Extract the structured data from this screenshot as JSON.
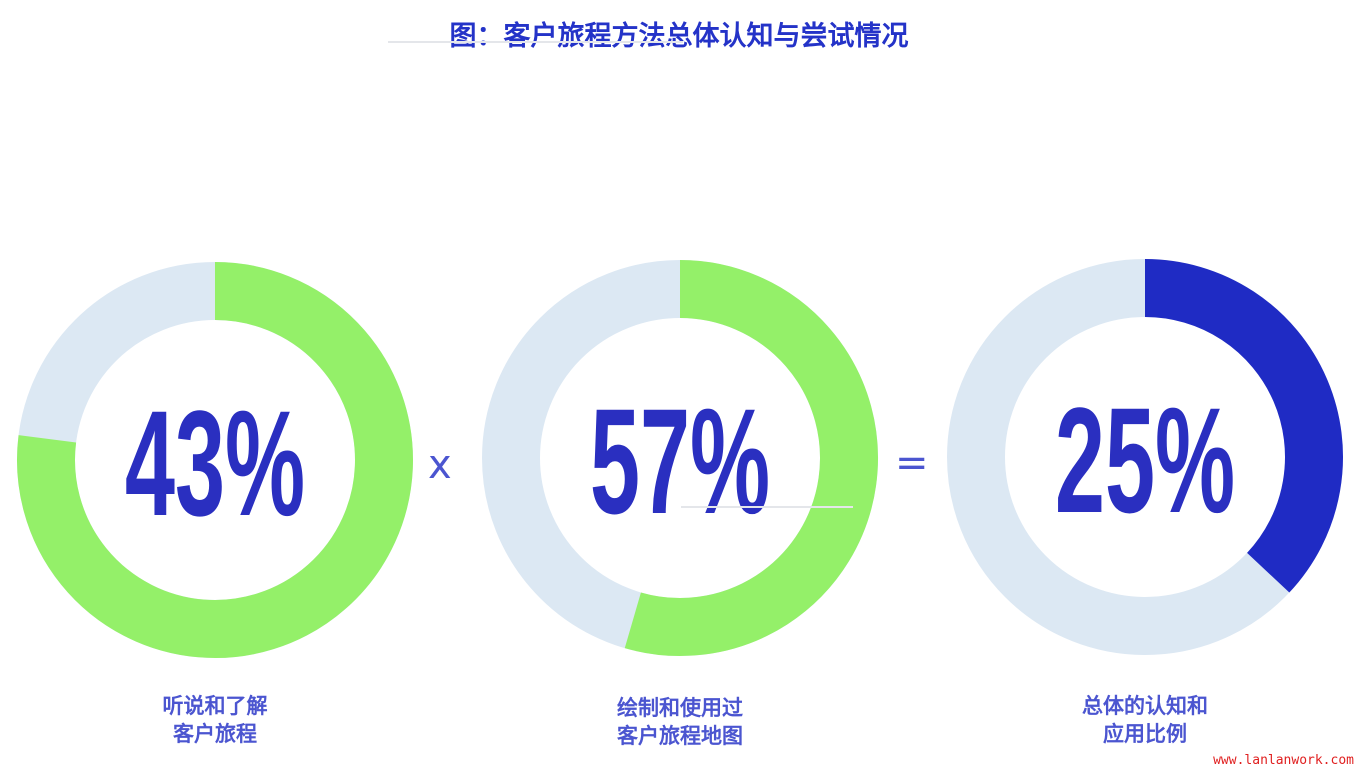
{
  "chart_data": {
    "type": "pie",
    "title": "图：客户旅程方法总体认知与尝试情况",
    "charts": [
      {
        "value_label": "43%",
        "value": 43,
        "fill_fraction": 0.77,
        "label_lines": [
          "听说和了解",
          "客户旅程"
        ],
        "color": "#94f069",
        "track_color": "#dce8f3"
      },
      {
        "value_label": "57%",
        "value": 57,
        "fill_fraction": 0.545,
        "label_lines": [
          "绘制和使用过",
          "客户旅程地图"
        ],
        "color": "#94f069",
        "track_color": "#dce8f3"
      },
      {
        "value_label": "25%",
        "value": 25,
        "fill_fraction": 0.37,
        "label_lines": [
          "总体的认知和",
          "应用比例"
        ],
        "color": "#1f2bc4",
        "track_color": "#dce8f3"
      }
    ],
    "operators": [
      "x",
      "="
    ]
  },
  "watermark": "www.lanlanwork.com"
}
